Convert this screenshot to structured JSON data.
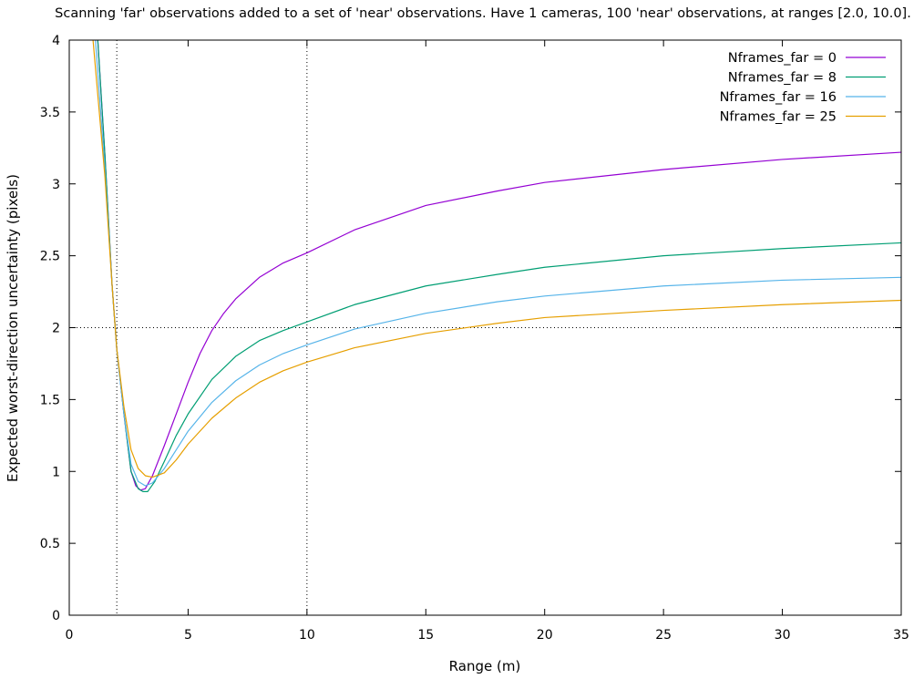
{
  "chart_data": {
    "type": "line",
    "title": "Scanning 'far' observations added to a set of 'near' observations. Have 1 cameras, 100 'near' observations, at ranges [2.0, 10.0].",
    "xlabel": "Range (m)",
    "ylabel": "Expected worst-direction uncertainty (pixels)",
    "xlim": [
      0,
      35
    ],
    "ylim": [
      0,
      4
    ],
    "x_ticks": [
      "0",
      "5",
      "10",
      "15",
      "20",
      "25",
      "30",
      "35"
    ],
    "y_ticks": [
      "0",
      "0.5",
      "1",
      "1.5",
      "2",
      "2.5",
      "3",
      "3.5",
      "4"
    ],
    "grid": false,
    "legend_position": "top-right",
    "reference_lines": {
      "vertical_x": [
        2.0,
        10.0
      ],
      "horizontal_y": [
        2.0
      ]
    },
    "series": [
      {
        "name": "Nframes_far = 0",
        "color": "#9400d3",
        "points": [
          [
            1.2,
            4.0
          ],
          [
            1.5,
            3.2
          ],
          [
            1.8,
            2.3
          ],
          [
            2.0,
            1.85
          ],
          [
            2.3,
            1.4
          ],
          [
            2.6,
            1.0
          ],
          [
            2.8,
            0.9
          ],
          [
            3.0,
            0.87
          ],
          [
            3.2,
            0.88
          ],
          [
            3.5,
            0.97
          ],
          [
            4.0,
            1.18
          ],
          [
            4.5,
            1.4
          ],
          [
            5.0,
            1.62
          ],
          [
            5.5,
            1.82
          ],
          [
            6.0,
            1.98
          ],
          [
            6.5,
            2.1
          ],
          [
            7.0,
            2.2
          ],
          [
            8.0,
            2.35
          ],
          [
            9.0,
            2.45
          ],
          [
            10.0,
            2.52
          ],
          [
            12.0,
            2.68
          ],
          [
            15.0,
            2.85
          ],
          [
            18.0,
            2.95
          ],
          [
            20.0,
            3.01
          ],
          [
            25.0,
            3.1
          ],
          [
            30.0,
            3.17
          ],
          [
            35.0,
            3.22
          ]
        ]
      },
      {
        "name": "Nframes_far = 8",
        "color": "#009e73",
        "points": [
          [
            1.2,
            4.0
          ],
          [
            1.5,
            3.2
          ],
          [
            1.8,
            2.3
          ],
          [
            2.0,
            1.85
          ],
          [
            2.3,
            1.4
          ],
          [
            2.6,
            1.0
          ],
          [
            2.9,
            0.88
          ],
          [
            3.1,
            0.86
          ],
          [
            3.3,
            0.86
          ],
          [
            3.6,
            0.93
          ],
          [
            4.0,
            1.07
          ],
          [
            4.5,
            1.25
          ],
          [
            5.0,
            1.4
          ],
          [
            6.0,
            1.64
          ],
          [
            7.0,
            1.8
          ],
          [
            8.0,
            1.91
          ],
          [
            9.0,
            1.98
          ],
          [
            10.0,
            2.04
          ],
          [
            12.0,
            2.16
          ],
          [
            15.0,
            2.29
          ],
          [
            18.0,
            2.37
          ],
          [
            20.0,
            2.42
          ],
          [
            25.0,
            2.5
          ],
          [
            30.0,
            2.55
          ],
          [
            35.0,
            2.59
          ]
        ]
      },
      {
        "name": "Nframes_far = 16",
        "color": "#56b4e9",
        "points": [
          [
            1.1,
            4.0
          ],
          [
            1.5,
            3.1
          ],
          [
            1.8,
            2.3
          ],
          [
            2.0,
            1.85
          ],
          [
            2.3,
            1.4
          ],
          [
            2.6,
            1.05
          ],
          [
            2.9,
            0.93
          ],
          [
            3.2,
            0.9
          ],
          [
            3.5,
            0.92
          ],
          [
            4.0,
            1.02
          ],
          [
            4.5,
            1.15
          ],
          [
            5.0,
            1.28
          ],
          [
            6.0,
            1.48
          ],
          [
            7.0,
            1.63
          ],
          [
            8.0,
            1.74
          ],
          [
            9.0,
            1.82
          ],
          [
            10.0,
            1.88
          ],
          [
            12.0,
            1.99
          ],
          [
            15.0,
            2.1
          ],
          [
            18.0,
            2.18
          ],
          [
            20.0,
            2.22
          ],
          [
            25.0,
            2.29
          ],
          [
            30.0,
            2.33
          ],
          [
            35.0,
            2.35
          ]
        ]
      },
      {
        "name": "Nframes_far = 25",
        "color": "#e69f00",
        "points": [
          [
            1.0,
            4.0
          ],
          [
            1.5,
            3.05
          ],
          [
            1.8,
            2.3
          ],
          [
            2.0,
            1.85
          ],
          [
            2.3,
            1.45
          ],
          [
            2.6,
            1.15
          ],
          [
            2.9,
            1.02
          ],
          [
            3.2,
            0.97
          ],
          [
            3.5,
            0.96
          ],
          [
            4.0,
            0.99
          ],
          [
            4.5,
            1.08
          ],
          [
            5.0,
            1.19
          ],
          [
            6.0,
            1.37
          ],
          [
            7.0,
            1.51
          ],
          [
            8.0,
            1.62
          ],
          [
            9.0,
            1.7
          ],
          [
            10.0,
            1.76
          ],
          [
            12.0,
            1.86
          ],
          [
            15.0,
            1.96
          ],
          [
            18.0,
            2.03
          ],
          [
            20.0,
            2.07
          ],
          [
            25.0,
            2.12
          ],
          [
            30.0,
            2.16
          ],
          [
            35.0,
            2.19
          ]
        ]
      }
    ]
  }
}
